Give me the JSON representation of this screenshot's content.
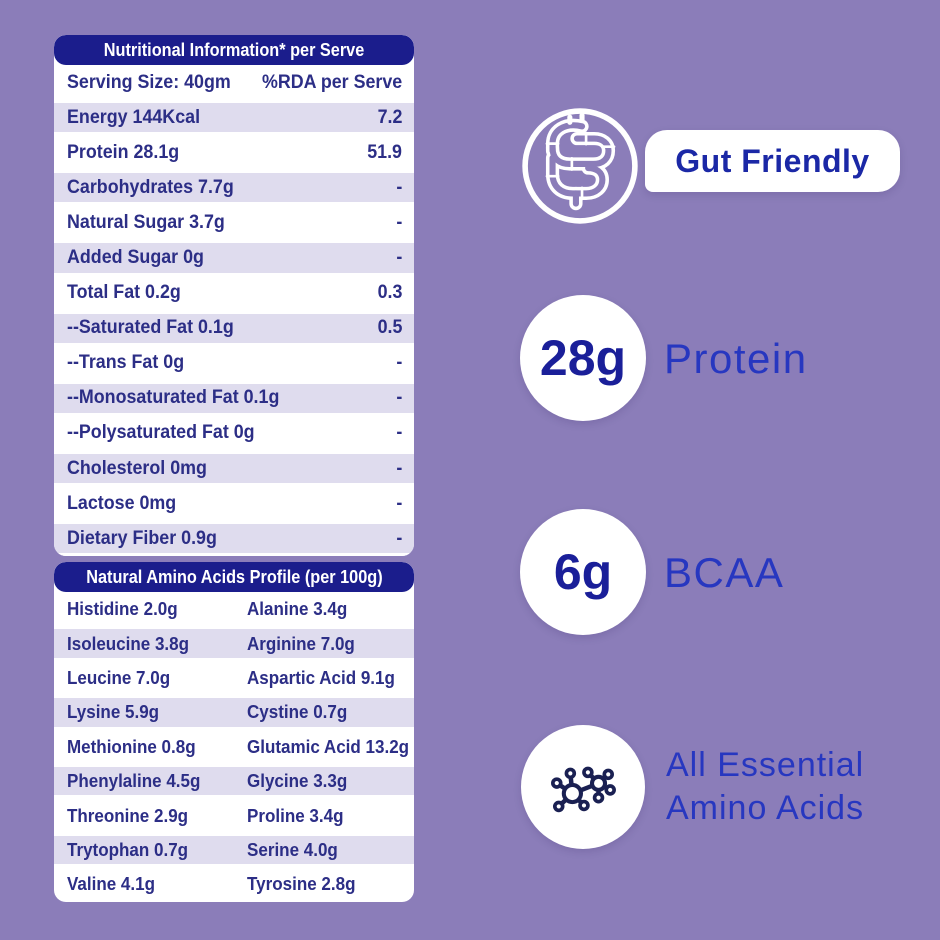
{
  "page": {
    "background_color": "#8b7db9",
    "header_color": "#1b1d8c",
    "stripe_color": "#dfdcee",
    "table_text_color": "#2c2e86",
    "badge_text_color": "#2737c0"
  },
  "nutrition_table": {
    "title": "Nutritional Information* per Serve",
    "columns": {
      "left": "Serving Size: 40gm",
      "right": "%RDA per Serve"
    },
    "rows": [
      {
        "label": "Energy 144Kcal",
        "value": "7.2"
      },
      {
        "label": "Protein 28.1g",
        "value": "51.9"
      },
      {
        "label": "Carbohydrates 7.7g",
        "value": "-"
      },
      {
        "label": "Natural Sugar 3.7g",
        "value": "-"
      },
      {
        "label": "Added Sugar 0g",
        "value": "-"
      },
      {
        "label": "Total Fat 0.2g",
        "value": "0.3"
      },
      {
        "label": "--Saturated Fat 0.1g",
        "value": "0.5"
      },
      {
        "label": "--Trans Fat 0g",
        "value": "-"
      },
      {
        "label": "--Monosaturated Fat 0.1g",
        "value": "-"
      },
      {
        "label": "--Polysaturated Fat 0g",
        "value": "-"
      },
      {
        "label": "Cholesterol 0mg",
        "value": "-"
      },
      {
        "label": "Lactose 0mg",
        "value": "-"
      },
      {
        "label": "Dietary Fiber 0.9g",
        "value": "-"
      }
    ]
  },
  "amino_table": {
    "title": "Natural Amino Acids Profile (per 100g)",
    "rows": [
      {
        "left": "Histidine 2.0g",
        "right": "Alanine 3.4g"
      },
      {
        "left": "Isoleucine 3.8g",
        "right": "Arginine 7.0g"
      },
      {
        "left": "Leucine 7.0g",
        "right": "Aspartic Acid 9.1g"
      },
      {
        "left": "Lysine 5.9g",
        "right": "Cystine 0.7g"
      },
      {
        "left": "Methionine 0.8g",
        "right": "Glutamic Acid 13.2g"
      },
      {
        "left": "Phenylaline 4.5g",
        "right": "Glycine 3.3g"
      },
      {
        "left": "Threonine 2.9g",
        "right": "Proline 3.4g"
      },
      {
        "left": "Trytophan 0.7g",
        "right": "Serine 4.0g"
      },
      {
        "left": "Valine 4.1g",
        "right": "Tyrosine 2.8g"
      }
    ]
  },
  "badges": {
    "gut": {
      "label": "Gut Friendly",
      "icon": "intestine-icon"
    },
    "protein": {
      "value": "28g",
      "label": "Protein"
    },
    "bcaa": {
      "value": "6g",
      "label": "BCAA"
    },
    "amino": {
      "line1": "All Essential",
      "line2": "Amino Acids",
      "icon": "molecule-icon"
    }
  }
}
